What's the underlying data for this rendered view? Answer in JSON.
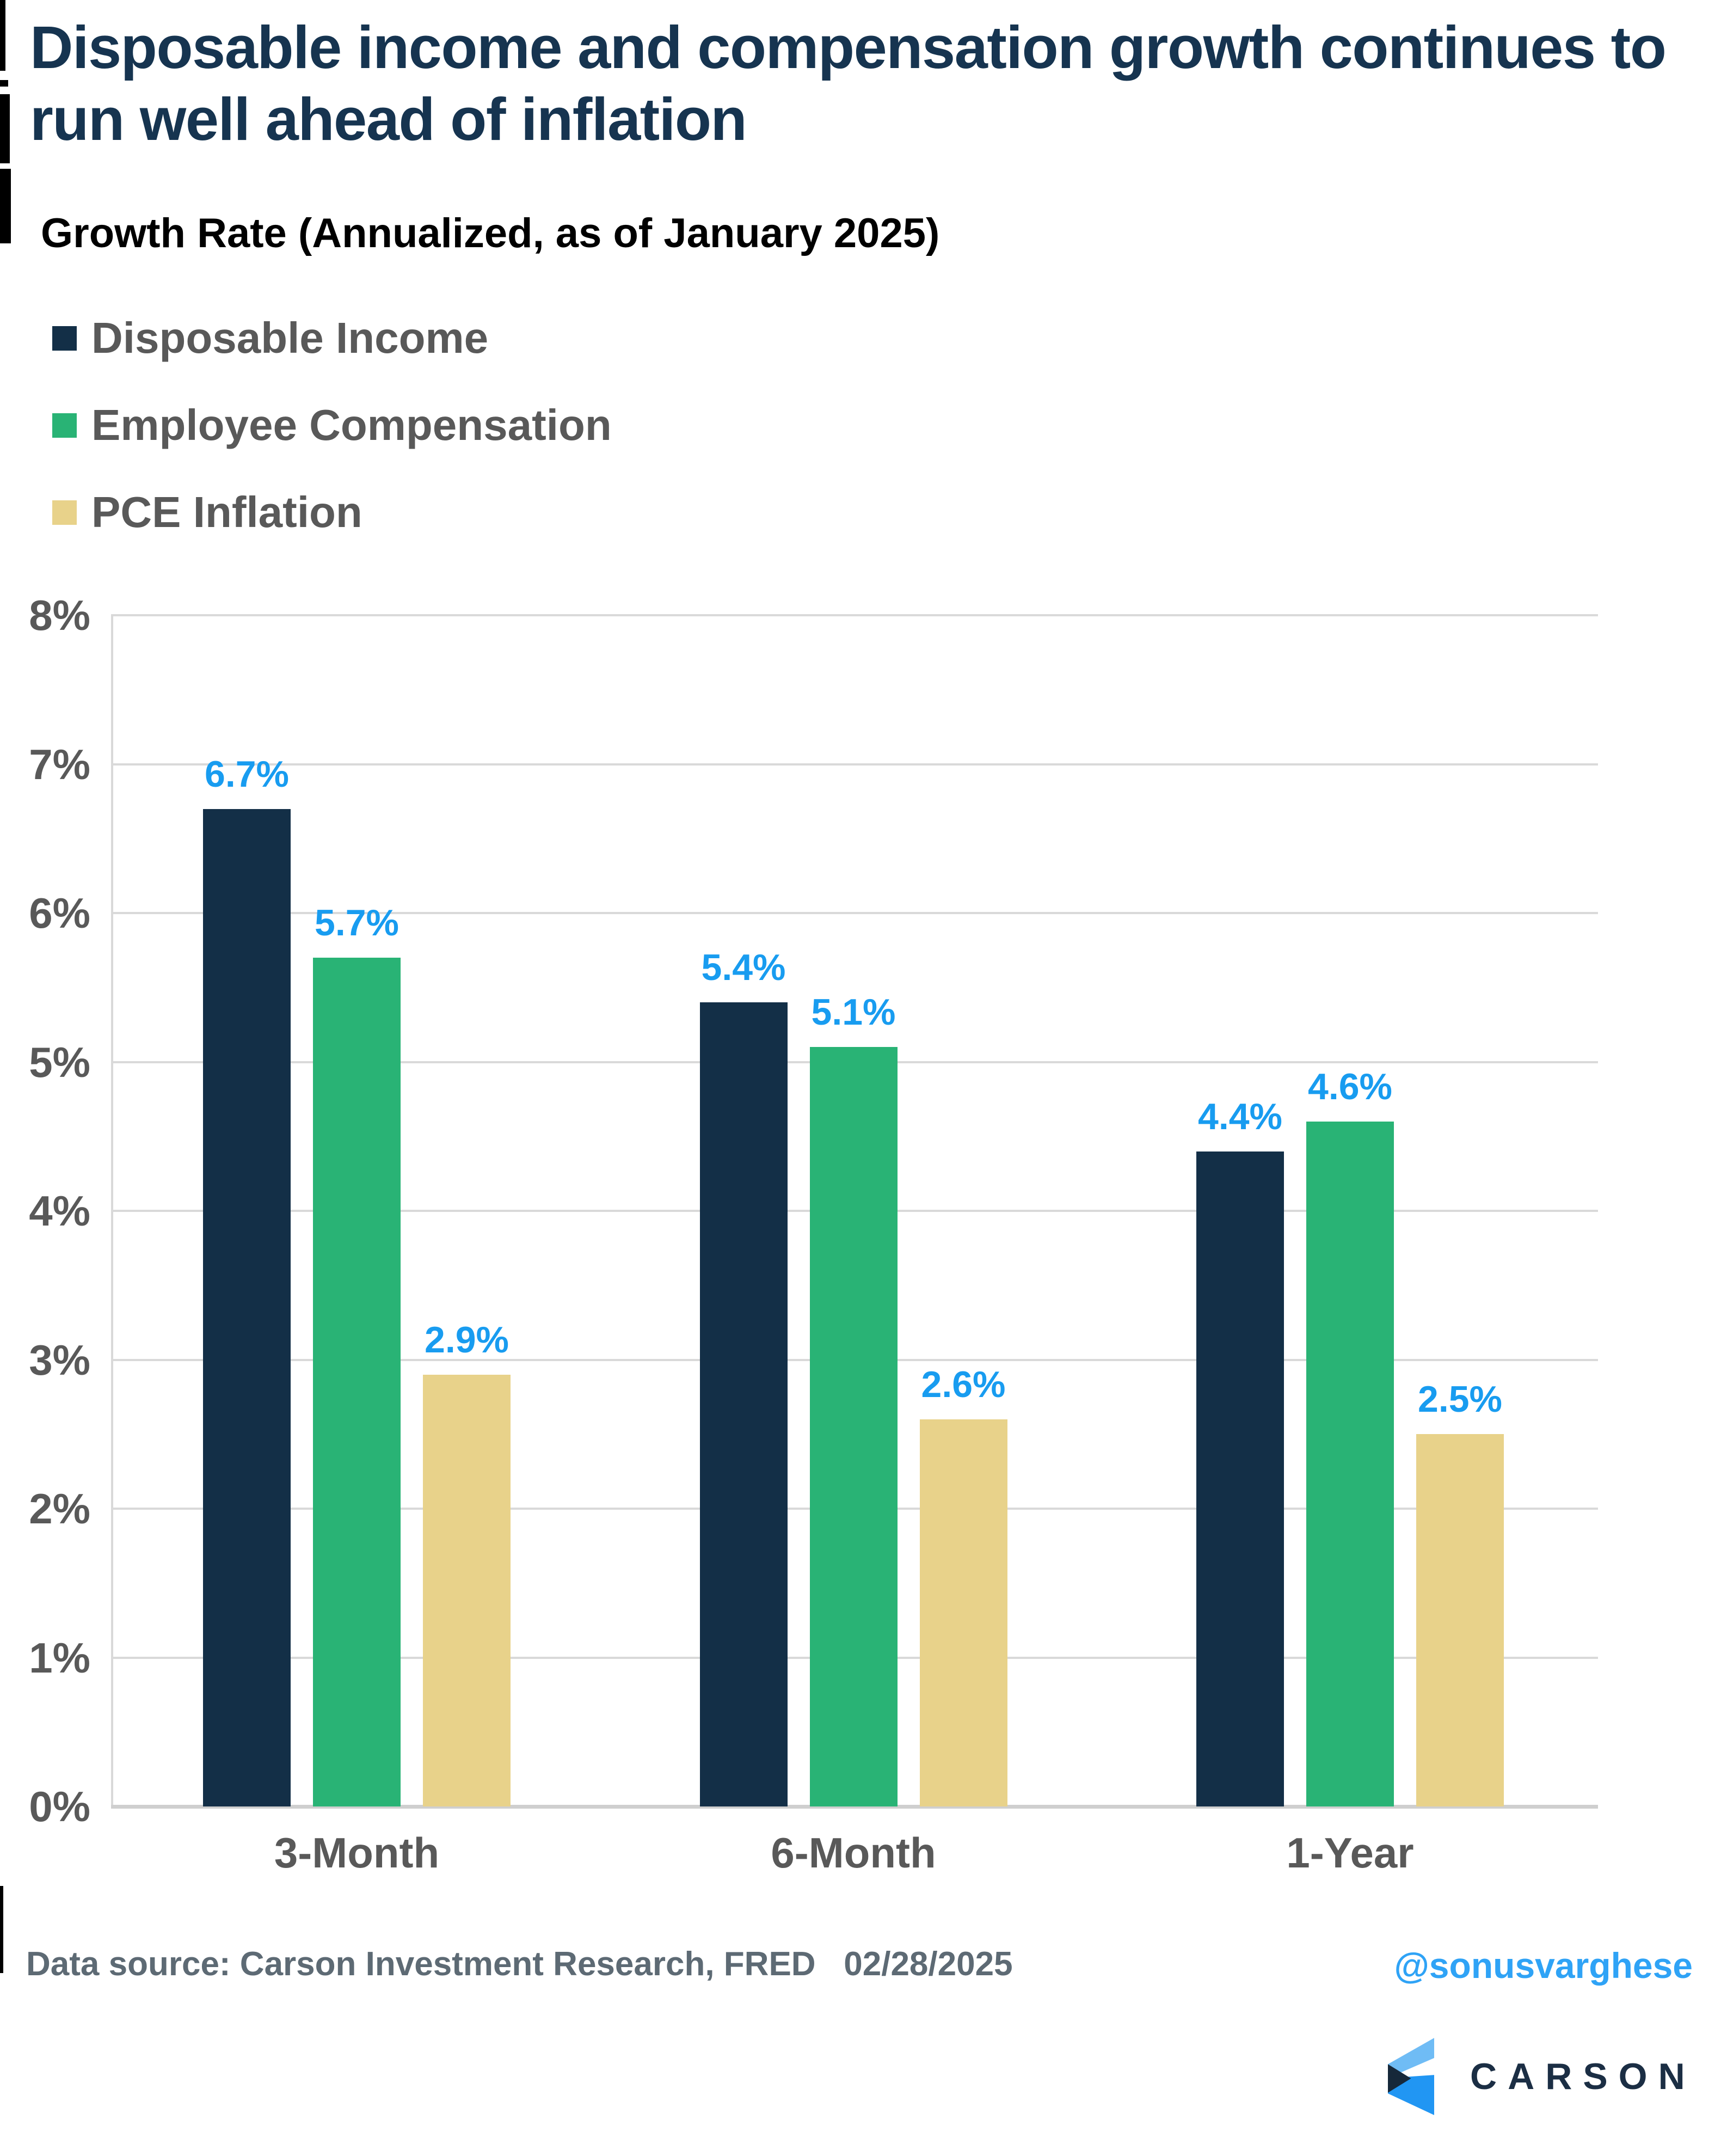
{
  "title": {
    "line1": "Disposable income and compensation growth continues to",
    "line2": "run well ahead of inflation"
  },
  "subtitle": "Growth Rate (Annualized, as of January 2025)",
  "legend": [
    {
      "label": "Disposable Income",
      "color": "#132F47"
    },
    {
      "label": "Employee Compensation",
      "color": "#29B375"
    },
    {
      "label": "PCE Inflation",
      "color": "#E8D28A"
    }
  ],
  "chart_data": {
    "type": "bar",
    "title": "Growth Rate (Annualized, as of January 2025)",
    "categories": [
      "3-Month",
      "6-Month",
      "1-Year"
    ],
    "series": [
      {
        "name": "Disposable Income",
        "color": "#132F47",
        "values": [
          6.7,
          5.4,
          4.4
        ]
      },
      {
        "name": "Employee Compensation",
        "color": "#29B375",
        "values": [
          5.7,
          5.1,
          4.6
        ]
      },
      {
        "name": "PCE Inflation",
        "color": "#E8D28A",
        "values": [
          2.9,
          2.6,
          2.5
        ]
      }
    ],
    "value_label_format": "{v}%",
    "value_label_color": "#189CF0",
    "xlabel": "",
    "ylabel": "",
    "ylim": [
      0,
      8
    ],
    "ytick_step": 1,
    "yticks": [
      "0%",
      "1%",
      "2%",
      "3%",
      "4%",
      "5%",
      "6%",
      "7%",
      "8%"
    ],
    "grid": true,
    "legend_position": "top-left"
  },
  "footer": {
    "source": "Data source: Carson Investment Research, FRED   02/28/2025",
    "handle": "@sonusvarghese"
  },
  "logo": {
    "text": "CARSON",
    "navy": "#1B2E44",
    "light_blue": "#6FBCF5",
    "blue": "#2196F3",
    "fold_dark": "#16283A"
  }
}
